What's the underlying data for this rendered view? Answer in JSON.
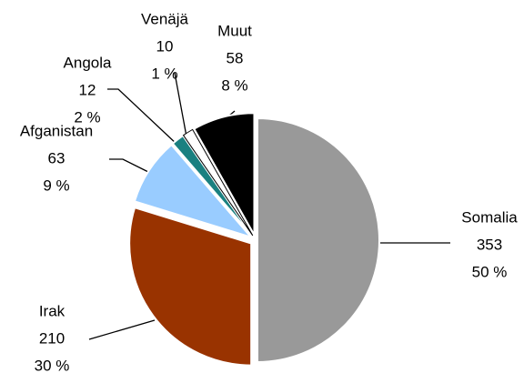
{
  "chart_data": {
    "type": "pie",
    "categories": [
      "Somalia",
      "Irak",
      "Afganistan",
      "Angola",
      "Venäjä",
      "Muut"
    ],
    "values": [
      353,
      210,
      63,
      12,
      10,
      58
    ],
    "percent_labels": [
      "50 %",
      "30 %",
      "9 %",
      "2 %",
      "1 %",
      "8 %"
    ],
    "colors": [
      "#999999",
      "#993300",
      "#99ccff",
      "#1a8080",
      "#ffffff",
      "#000000"
    ]
  }
}
